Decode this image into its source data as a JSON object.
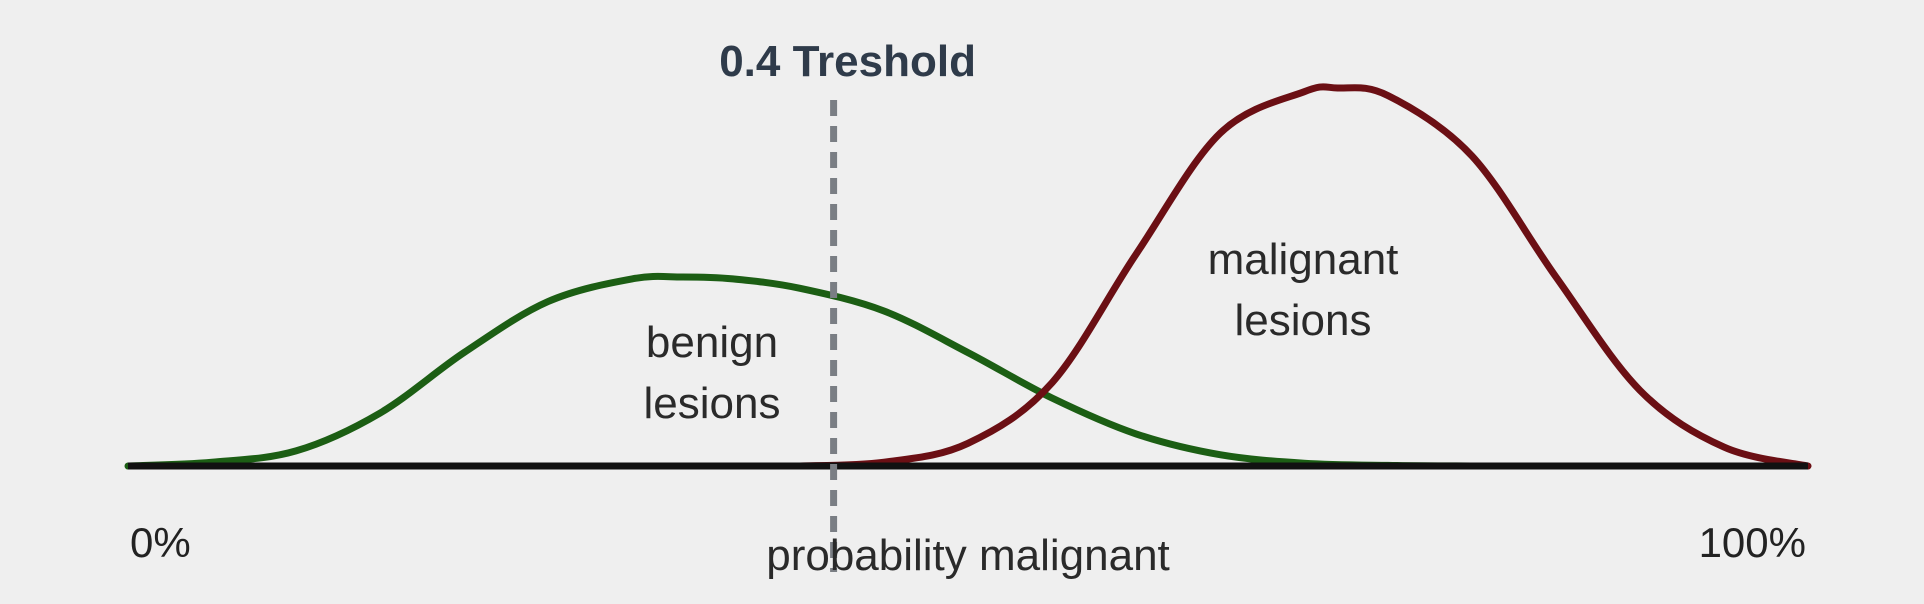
{
  "chart_data": {
    "type": "line",
    "xlabel": "probability malignant",
    "xlim": [
      0,
      100
    ],
    "x_tick_labels": [
      "0%",
      "100%"
    ],
    "threshold": {
      "label": "0.4 Treshold",
      "x": 42,
      "color": "#7a7e84",
      "label_color": "#2f3b4a"
    },
    "series": [
      {
        "name": "benign lesions",
        "label_lines": [
          "benign",
          "lesions"
        ],
        "color": "#1c5e14",
        "x": [
          0,
          5,
          10,
          15,
          20,
          25,
          30,
          33,
          36,
          40,
          45,
          50,
          55,
          60,
          65,
          70,
          75,
          80
        ],
        "y": [
          0,
          2,
          8,
          28,
          60,
          87,
          99,
          100,
          99,
          94,
          82,
          60,
          36,
          17,
          6,
          1.5,
          0.3,
          0
        ]
      },
      {
        "name": "malignant lesions",
        "label_lines": [
          "malignant",
          "lesions"
        ],
        "color": "#6b0f14",
        "x": [
          40,
          45,
          50,
          55,
          60,
          65,
          70,
          72,
          75,
          80,
          85,
          90,
          95,
          100
        ],
        "y": [
          0,
          1,
          6,
          22,
          56,
          88,
          99,
          100,
          98,
          82,
          50,
          20,
          5,
          0
        ]
      }
    ],
    "benign_peak_height": 0.5,
    "malignant_peak_height": 1.0,
    "grid": false,
    "legend": "none"
  }
}
